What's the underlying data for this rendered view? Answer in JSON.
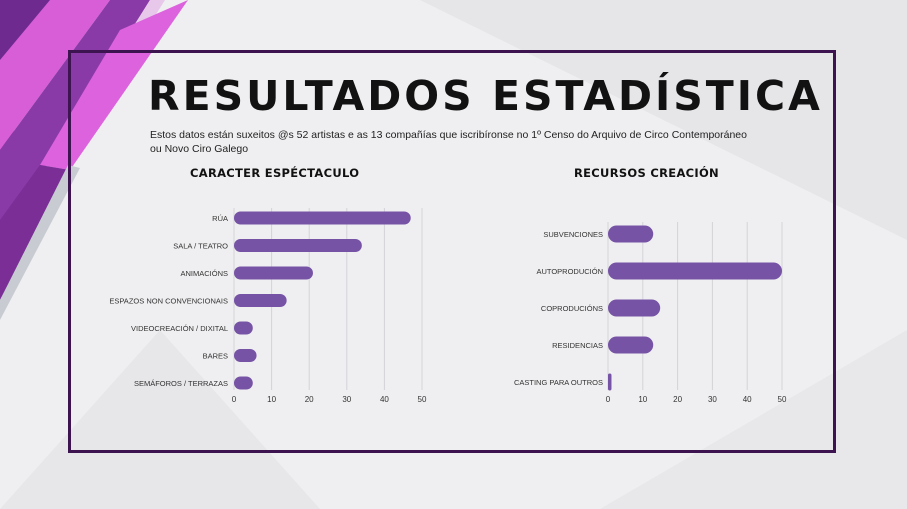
{
  "header": {
    "title": "RESULTADOS  ESTADÍSTICA",
    "subtitle_line1": "Estos datos están suxeitos @s 52 artistas e as 13 compañías que  iscribíronse no 1º Censo do Arquivo de Circo Contemporáneo",
    "subtitle_line2": "ou Novo Ciro Galego"
  },
  "colors": {
    "bar": "#7653a5",
    "frame": "#3d1450",
    "accent_pink": "#e05fe0",
    "accent_purple": "#6e2a8e"
  },
  "chart_data": [
    {
      "type": "bar",
      "orientation": "horizontal",
      "title": "CARACTER ESPÉCTACULO",
      "categories": [
        "RÚA",
        "SALA / TEATRO",
        "ANIMACIÓNS",
        "ESPAZOS NON CONVENCIONAIS",
        "VIDEOCREACIÓN / DIXITAL",
        "BARES",
        "SEMÁFOROS / TERRAZAS"
      ],
      "values": [
        47,
        34,
        21,
        14,
        5,
        6,
        5
      ],
      "xticks": [
        "0",
        "10",
        "20",
        "30",
        "40",
        "50"
      ],
      "xlim": [
        0,
        50
      ],
      "grid": "vertical"
    },
    {
      "type": "bar",
      "orientation": "horizontal",
      "title": "RECURSOS CREACIÓN",
      "categories": [
        "SUBVENCIONES",
        "AUTOPRODUCIÓN",
        "COPRODUCIÓNS",
        "RESIDENCIAS",
        "CASTING PARA OUTROS"
      ],
      "values": [
        13,
        50,
        15,
        13,
        1
      ],
      "xticks": [
        "0",
        "10",
        "20",
        "30",
        "40",
        "50"
      ],
      "xlim": [
        0,
        50
      ],
      "grid": "vertical"
    }
  ]
}
